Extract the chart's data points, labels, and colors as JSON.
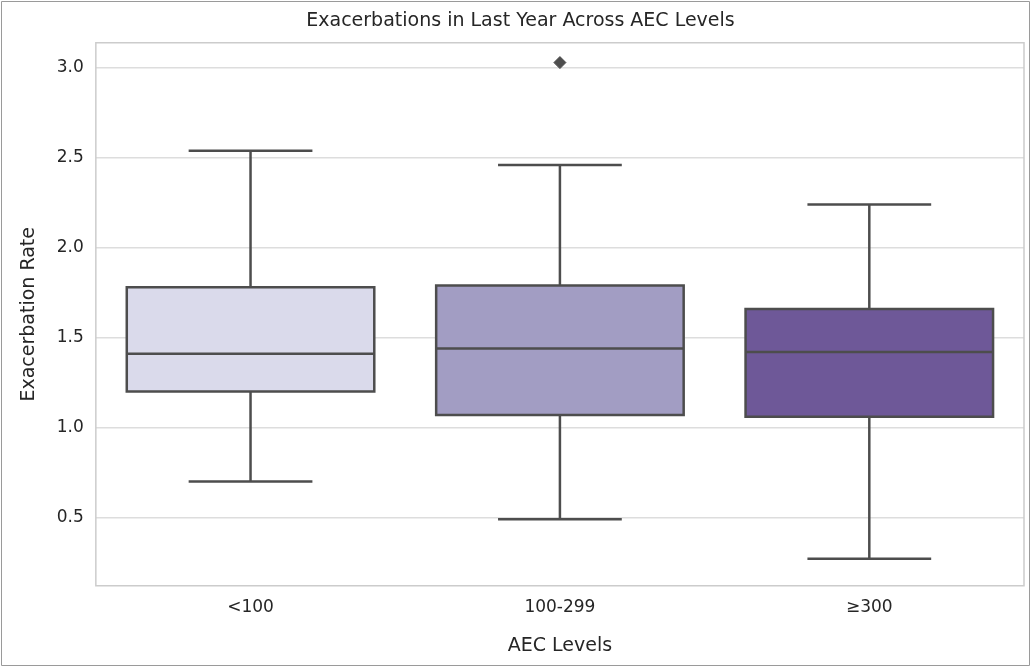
{
  "chart_data": {
    "type": "box",
    "title": "Exacerbations in Last Year Across AEC Levels",
    "xlabel": "AEC Levels",
    "ylabel": "Exacerbation Rate",
    "categories": [
      "<100",
      "100-299",
      "≥300"
    ],
    "colors": [
      "#dadaeb",
      "#a29dc3",
      "#6e5898"
    ],
    "boxes": [
      {
        "low": 0.7,
        "q1": 1.2,
        "median": 1.41,
        "q3": 1.78,
        "high": 2.54
      },
      {
        "low": 0.49,
        "q1": 1.07,
        "median": 1.44,
        "q3": 1.79,
        "high": 2.46,
        "outliers": [
          3.03
        ]
      },
      {
        "low": 0.27,
        "q1": 1.06,
        "median": 1.42,
        "q3": 1.66,
        "high": 2.24
      }
    ],
    "ylim": [
      0.12,
      3.14
    ],
    "yticks": [
      0.5,
      {
        "value": 1,
        "label": "1.0"
      },
      1.5,
      {
        "value": 2,
        "label": "2.0"
      },
      2.5,
      {
        "value": 3,
        "label": "3.0"
      }
    ],
    "grid": "y",
    "marker": "diamond"
  }
}
